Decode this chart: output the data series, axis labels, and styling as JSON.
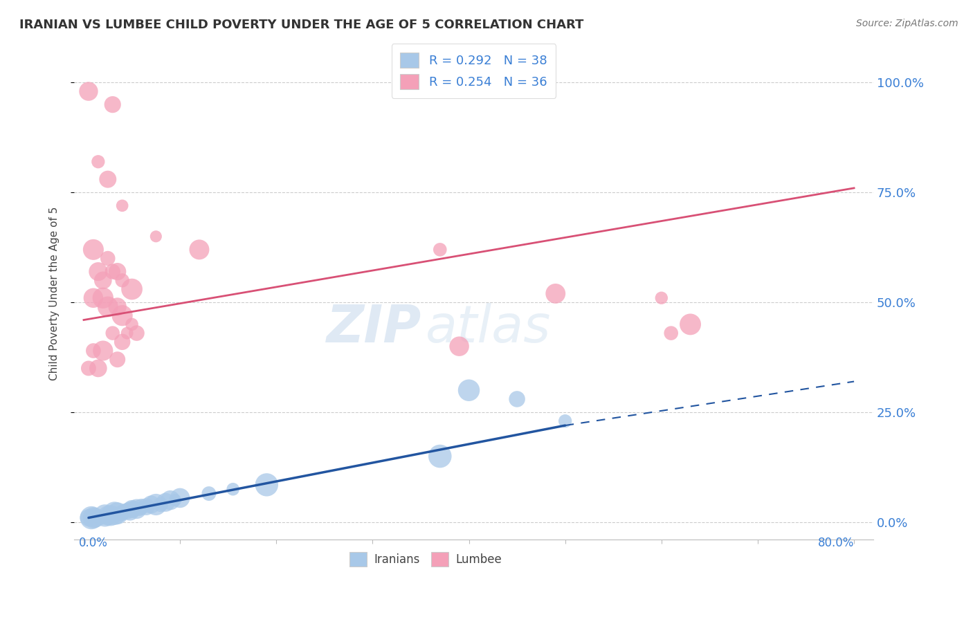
{
  "title": "IRANIAN VS LUMBEE CHILD POVERTY UNDER THE AGE OF 5 CORRELATION CHART",
  "source": "Source: ZipAtlas.com",
  "ylabel": "Child Poverty Under the Age of 5",
  "xlim": [
    0.0,
    0.8
  ],
  "ylim": [
    0.0,
    1.05
  ],
  "ytick_labels": [
    "0.0%",
    "25.0%",
    "50.0%",
    "75.0%",
    "100.0%"
  ],
  "ytick_values": [
    0.0,
    0.25,
    0.5,
    0.75,
    1.0
  ],
  "legend_iranian": "R = 0.292   N = 38",
  "legend_lumbee": "R = 0.254   N = 36",
  "iranian_color": "#a8c8e8",
  "lumbee_color": "#f4a0b8",
  "trend_iranian_color": "#2255a0",
  "trend_lumbee_color": "#d85075",
  "watermark_zip": "ZIP",
  "watermark_atlas": "atlas",
  "iranian_points": [
    [
      0.005,
      0.01
    ],
    [
      0.008,
      0.01
    ],
    [
      0.01,
      0.01
    ],
    [
      0.012,
      0.01
    ],
    [
      0.015,
      0.01
    ],
    [
      0.018,
      0.01
    ],
    [
      0.02,
      0.01
    ],
    [
      0.022,
      0.015
    ],
    [
      0.025,
      0.015
    ],
    [
      0.028,
      0.015
    ],
    [
      0.03,
      0.02
    ],
    [
      0.032,
      0.02
    ],
    [
      0.035,
      0.02
    ],
    [
      0.038,
      0.02
    ],
    [
      0.04,
      0.02
    ],
    [
      0.042,
      0.025
    ],
    [
      0.045,
      0.025
    ],
    [
      0.048,
      0.025
    ],
    [
      0.05,
      0.03
    ],
    [
      0.052,
      0.03
    ],
    [
      0.055,
      0.03
    ],
    [
      0.058,
      0.03
    ],
    [
      0.06,
      0.035
    ],
    [
      0.065,
      0.035
    ],
    [
      0.07,
      0.04
    ],
    [
      0.075,
      0.04
    ],
    [
      0.08,
      0.04
    ],
    [
      0.085,
      0.045
    ],
    [
      0.09,
      0.05
    ],
    [
      0.095,
      0.05
    ],
    [
      0.1,
      0.055
    ],
    [
      0.13,
      0.065
    ],
    [
      0.155,
      0.075
    ],
    [
      0.19,
      0.085
    ],
    [
      0.37,
      0.15
    ],
    [
      0.4,
      0.3
    ],
    [
      0.45,
      0.28
    ],
    [
      0.5,
      0.23
    ]
  ],
  "lumbee_points": [
    [
      0.005,
      0.98
    ],
    [
      0.03,
      0.95
    ],
    [
      0.015,
      0.82
    ],
    [
      0.025,
      0.78
    ],
    [
      0.04,
      0.72
    ],
    [
      0.01,
      0.62
    ],
    [
      0.025,
      0.6
    ],
    [
      0.015,
      0.57
    ],
    [
      0.03,
      0.57
    ],
    [
      0.035,
      0.57
    ],
    [
      0.02,
      0.55
    ],
    [
      0.04,
      0.55
    ],
    [
      0.05,
      0.53
    ],
    [
      0.01,
      0.51
    ],
    [
      0.02,
      0.51
    ],
    [
      0.025,
      0.49
    ],
    [
      0.035,
      0.49
    ],
    [
      0.04,
      0.47
    ],
    [
      0.05,
      0.45
    ],
    [
      0.03,
      0.43
    ],
    [
      0.045,
      0.43
    ],
    [
      0.055,
      0.43
    ],
    [
      0.04,
      0.41
    ],
    [
      0.01,
      0.39
    ],
    [
      0.02,
      0.39
    ],
    [
      0.035,
      0.37
    ],
    [
      0.005,
      0.35
    ],
    [
      0.015,
      0.35
    ],
    [
      0.37,
      0.62
    ],
    [
      0.49,
      0.52
    ],
    [
      0.6,
      0.51
    ],
    [
      0.63,
      0.45
    ],
    [
      0.39,
      0.4
    ],
    [
      0.61,
      0.43
    ],
    [
      0.075,
      0.65
    ],
    [
      0.12,
      0.62
    ]
  ],
  "trend_lumbee_x0": 0.0,
  "trend_lumbee_y0": 0.46,
  "trend_lumbee_x1": 0.8,
  "trend_lumbee_y1": 0.76,
  "trend_iranian_solid_x0": 0.005,
  "trend_iranian_solid_y0": 0.01,
  "trend_iranian_solid_x1": 0.5,
  "trend_iranian_solid_y1": 0.22,
  "trend_iranian_dash_x0": 0.5,
  "trend_iranian_dash_y0": 0.22,
  "trend_iranian_dash_x1": 0.8,
  "trend_iranian_dash_y1": 0.32
}
